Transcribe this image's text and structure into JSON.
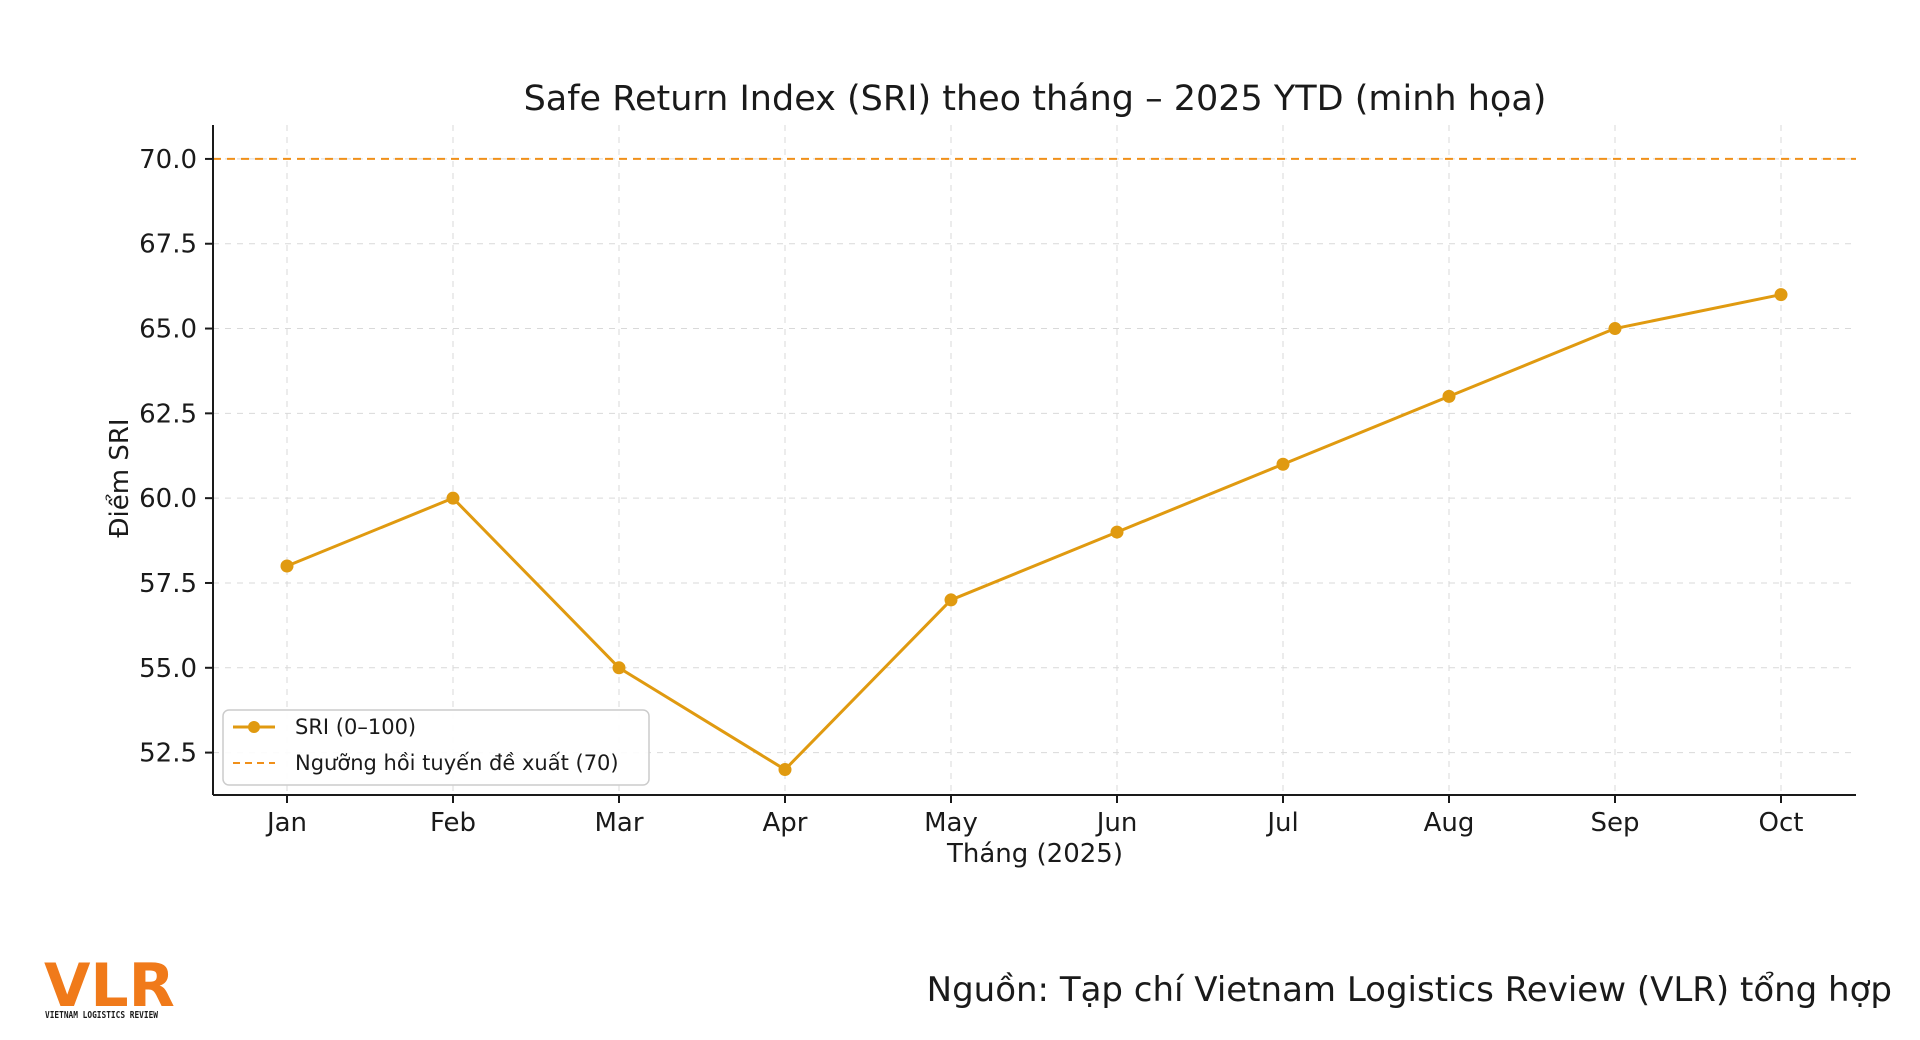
{
  "colors": {
    "series": "#e09a10",
    "threshold": "#f0901a",
    "brand": "#f07a1a"
  },
  "chart_data": {
    "type": "line",
    "title": "Safe Return Index (SRI) theo tháng – 2025 YTD (minh họa)",
    "xlabel": "Tháng (2025)",
    "ylabel": "Điểm SRI",
    "categories": [
      "Jan",
      "Feb",
      "Mar",
      "Apr",
      "May",
      "Jun",
      "Jul",
      "Aug",
      "Sep",
      "Oct"
    ],
    "series": [
      {
        "name": "SRI (0–100)",
        "values": [
          58,
          60,
          55,
          52,
          57,
          59,
          61,
          63,
          65,
          66
        ],
        "style": "solid-with-markers",
        "color": "#e09a10"
      }
    ],
    "reference_lines": [
      {
        "name": "Ngưỡng hồi tuyến đề xuất (70)",
        "y": 70,
        "style": "dashed",
        "color": "#f0901a"
      }
    ],
    "ylim": [
      51.25,
      71
    ],
    "yticks": [
      52.5,
      55.0,
      57.5,
      60.0,
      62.5,
      65.0,
      67.5,
      70.0
    ],
    "ytick_labels": [
      "52.5",
      "55.0",
      "57.5",
      "60.0",
      "62.5",
      "65.0",
      "67.5",
      "70.0"
    ],
    "grid": true,
    "legend_position": "bottom-left"
  },
  "footer": {
    "source": "Nguồn: Tạp chí Vietnam Logistics Review (VLR) tổng hợp",
    "logo_text": "VLR",
    "logo_subtitle": "VIETNAM LOGISTICS REVIEW"
  }
}
